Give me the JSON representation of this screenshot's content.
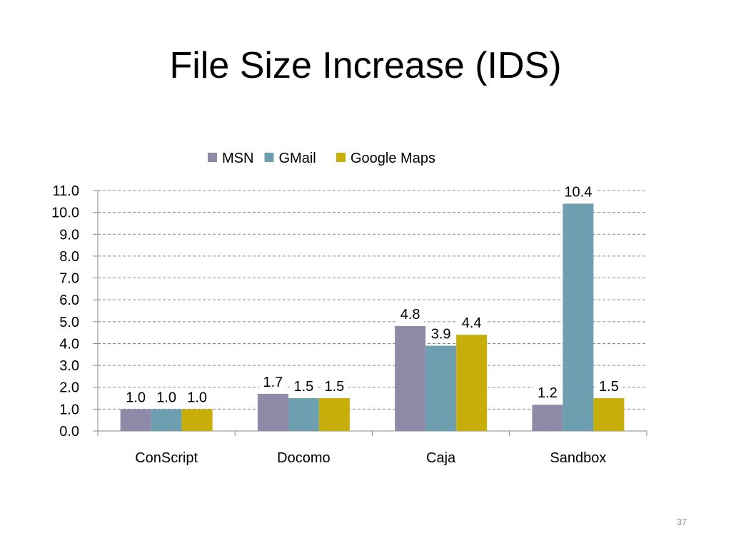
{
  "slide": {
    "title": "File Size Increase (IDS)",
    "number": "37"
  },
  "chart_data": {
    "type": "bar",
    "categories": [
      "ConScript",
      "Docomo",
      "Caja",
      "Sandbox"
    ],
    "series": [
      {
        "name": "MSN",
        "color": "#8e8aa8",
        "values": [
          1.0,
          1.7,
          4.8,
          1.2
        ]
      },
      {
        "name": "GMail",
        "color": "#6e9fb0",
        "values": [
          1.0,
          1.5,
          3.9,
          10.4
        ]
      },
      {
        "name": "Google Maps",
        "color": "#c8ae0a",
        "values": [
          1.0,
          1.5,
          4.4,
          1.5
        ]
      }
    ],
    "data_labels": [
      [
        "1.0",
        "1.7",
        "4.8",
        "1.2"
      ],
      [
        "1.0",
        "1.5",
        "3.9",
        "10.4"
      ],
      [
        "1.0",
        "1.5",
        "4.4",
        "1.5"
      ]
    ],
    "ylim": [
      0,
      11
    ],
    "yticks": [
      "0.0",
      "1.0",
      "2.0",
      "3.0",
      "4.0",
      "5.0",
      "6.0",
      "7.0",
      "8.0",
      "9.0",
      "10.0",
      "11.0"
    ],
    "xlabel": "",
    "ylabel": "",
    "grid": true,
    "legend_position": "top"
  }
}
